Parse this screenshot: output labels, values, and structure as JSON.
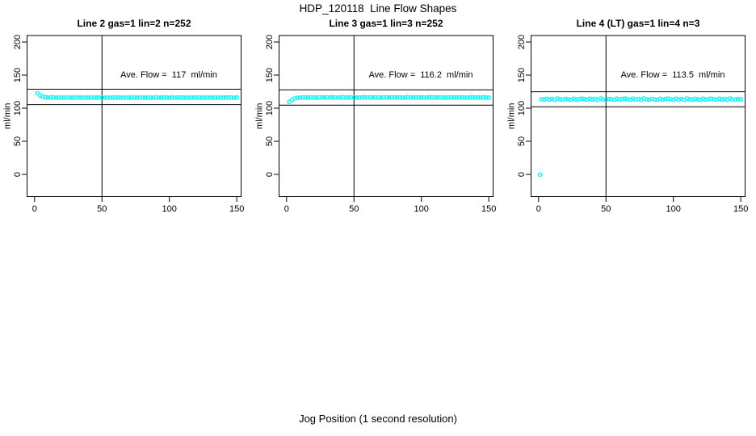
{
  "page": {
    "title": "HDP_120118  Line Flow Shapes",
    "xlabel": "Jog Position (1 second resolution)"
  },
  "colors": {
    "points": "#00FFFF",
    "axis": "#000000",
    "background": "#FFFFFF"
  },
  "chart_data": [
    {
      "type": "scatter",
      "title": "Line 2 gas=1 lin=2 n=252",
      "ylabel": "ml/min",
      "annotation": "Ave. Flow =  117  ml/min",
      "ave_flow": 117,
      "x_ticks": [
        0,
        50,
        100,
        150
      ],
      "y_ticks": [
        0,
        50,
        100,
        150,
        200
      ],
      "xlim": [
        -6,
        156
      ],
      "ylim": [
        -35,
        210
      ],
      "vline_x": 50,
      "hlines": [
        128.7,
        105.3
      ],
      "legend": "none",
      "grid": false,
      "points": [
        [
          2,
          122.4
        ],
        [
          4,
          119.2
        ],
        [
          6,
          117.4
        ],
        [
          8,
          116.5
        ],
        [
          10,
          116.1
        ],
        [
          12,
          116.4
        ],
        [
          14,
          116.2
        ],
        [
          16,
          115.9
        ],
        [
          18,
          116.0
        ],
        [
          20,
          115.8
        ],
        [
          22,
          116.1
        ],
        [
          24,
          115.9
        ],
        [
          26,
          116.2
        ],
        [
          28,
          115.8
        ],
        [
          30,
          116.0
        ],
        [
          32,
          116.1
        ],
        [
          34,
          116.0
        ],
        [
          36,
          115.8
        ],
        [
          38,
          116.1
        ],
        [
          40,
          115.9
        ],
        [
          42,
          116.2
        ],
        [
          44,
          115.8
        ],
        [
          46,
          116.0
        ],
        [
          48,
          116.1
        ],
        [
          50,
          116.0
        ],
        [
          52,
          115.8
        ],
        [
          54,
          116.1
        ],
        [
          56,
          115.9
        ],
        [
          58,
          116.2
        ],
        [
          60,
          115.8
        ],
        [
          62,
          116.0
        ],
        [
          64,
          116.1
        ],
        [
          66,
          116.0
        ],
        [
          68,
          115.8
        ],
        [
          70,
          116.1
        ],
        [
          72,
          115.9
        ],
        [
          74,
          116.2
        ],
        [
          76,
          115.8
        ],
        [
          78,
          116.0
        ],
        [
          80,
          116.1
        ],
        [
          82,
          116.0
        ],
        [
          84,
          115.8
        ],
        [
          86,
          116.1
        ],
        [
          88,
          115.9
        ],
        [
          90,
          116.2
        ],
        [
          92,
          115.8
        ],
        [
          94,
          116.0
        ],
        [
          96,
          116.1
        ],
        [
          98,
          116.0
        ],
        [
          100,
          115.8
        ],
        [
          102,
          116.1
        ],
        [
          104,
          115.9
        ],
        [
          106,
          116.2
        ],
        [
          108,
          115.8
        ],
        [
          110,
          116.0
        ],
        [
          112,
          116.1
        ],
        [
          114,
          116.0
        ],
        [
          116,
          115.8
        ],
        [
          118,
          116.1
        ],
        [
          120,
          115.9
        ],
        [
          122,
          116.2
        ],
        [
          124,
          115.8
        ],
        [
          126,
          116.0
        ],
        [
          128,
          116.1
        ],
        [
          130,
          116.0
        ],
        [
          132,
          115.8
        ],
        [
          134,
          116.1
        ],
        [
          136,
          115.9
        ],
        [
          138,
          116.2
        ],
        [
          140,
          115.8
        ],
        [
          142,
          116.0
        ],
        [
          144,
          116.1
        ],
        [
          146,
          116.0
        ],
        [
          148,
          115.8
        ],
        [
          150,
          116.1
        ]
      ]
    },
    {
      "type": "scatter",
      "title": "Line 3 gas=1 lin=3 n=252",
      "ylabel": "ml/min",
      "annotation": "Ave. Flow =  116.2  ml/min",
      "ave_flow": 116.2,
      "x_ticks": [
        0,
        50,
        100,
        150
      ],
      "y_ticks": [
        0,
        50,
        100,
        150,
        200
      ],
      "xlim": [
        -6,
        156
      ],
      "ylim": [
        -35,
        210
      ],
      "vline_x": 50,
      "hlines": [
        127.8,
        104.6
      ],
      "legend": "none",
      "grid": false,
      "points": [
        [
          2,
          109.4
        ],
        [
          4,
          112.8
        ],
        [
          6,
          114.7
        ],
        [
          8,
          115.6
        ],
        [
          10,
          116.0
        ],
        [
          12,
          116.1
        ],
        [
          14,
          116.2
        ],
        [
          16,
          116.0
        ],
        [
          18,
          116.3
        ],
        [
          20,
          116.1
        ],
        [
          22,
          115.9
        ],
        [
          24,
          116.2
        ],
        [
          26,
          116.4
        ],
        [
          28,
          116.0
        ],
        [
          30,
          116.2
        ],
        [
          32,
          116.0
        ],
        [
          34,
          116.3
        ],
        [
          36,
          116.1
        ],
        [
          38,
          115.9
        ],
        [
          40,
          116.2
        ],
        [
          42,
          116.4
        ],
        [
          44,
          116.0
        ],
        [
          46,
          116.2
        ],
        [
          48,
          116.0
        ],
        [
          50,
          116.3
        ],
        [
          52,
          116.1
        ],
        [
          54,
          115.9
        ],
        [
          56,
          116.2
        ],
        [
          58,
          116.4
        ],
        [
          60,
          116.0
        ],
        [
          62,
          116.2
        ],
        [
          64,
          116.0
        ],
        [
          66,
          116.3
        ],
        [
          68,
          116.1
        ],
        [
          70,
          115.9
        ],
        [
          72,
          116.2
        ],
        [
          74,
          116.4
        ],
        [
          76,
          116.0
        ],
        [
          78,
          116.2
        ],
        [
          80,
          116.0
        ],
        [
          82,
          116.3
        ],
        [
          84,
          116.1
        ],
        [
          86,
          115.9
        ],
        [
          88,
          116.2
        ],
        [
          90,
          116.4
        ],
        [
          92,
          116.0
        ],
        [
          94,
          116.2
        ],
        [
          96,
          116.0
        ],
        [
          98,
          116.3
        ],
        [
          100,
          116.1
        ],
        [
          102,
          115.9
        ],
        [
          104,
          116.2
        ],
        [
          106,
          116.4
        ],
        [
          108,
          116.0
        ],
        [
          110,
          116.2
        ],
        [
          112,
          116.0
        ],
        [
          114,
          116.3
        ],
        [
          116,
          116.1
        ],
        [
          118,
          115.9
        ],
        [
          120,
          116.2
        ],
        [
          122,
          116.4
        ],
        [
          124,
          116.0
        ],
        [
          126,
          116.2
        ],
        [
          128,
          116.0
        ],
        [
          130,
          116.3
        ],
        [
          132,
          116.1
        ],
        [
          134,
          115.9
        ],
        [
          136,
          116.2
        ],
        [
          138,
          116.4
        ],
        [
          140,
          116.0
        ],
        [
          142,
          116.2
        ],
        [
          144,
          116.0
        ],
        [
          146,
          116.3
        ],
        [
          148,
          116.1
        ],
        [
          150,
          115.9
        ]
      ]
    },
    {
      "type": "scatter",
      "title": "Line 4 (LT) gas=1 lin=4 n=3",
      "ylabel": "ml/min",
      "annotation": "Ave. Flow =  113.5  ml/min",
      "ave_flow": 113.5,
      "x_ticks": [
        0,
        50,
        100,
        150
      ],
      "y_ticks": [
        0,
        50,
        100,
        150,
        200
      ],
      "xlim": [
        -6,
        156
      ],
      "ylim": [
        -35,
        210
      ],
      "vline_x": 50,
      "hlines": [
        124.9,
        102.2
      ],
      "legend": "none",
      "grid": false,
      "points": [
        [
          1,
          -0.5
        ],
        [
          2,
          113.8
        ],
        [
          4,
          112.9
        ],
        [
          6,
          114.4
        ],
        [
          8,
          113.1
        ],
        [
          10,
          114.0
        ],
        [
          12,
          112.6
        ],
        [
          14,
          114.7
        ],
        [
          16,
          113.3
        ],
        [
          18,
          112.9
        ],
        [
          20,
          114.1
        ],
        [
          22,
          113.5
        ],
        [
          24,
          112.7
        ],
        [
          26,
          114.3
        ],
        [
          28,
          113.0
        ],
        [
          30,
          113.9
        ],
        [
          32,
          114.5
        ],
        [
          34,
          113.8
        ],
        [
          36,
          112.9
        ],
        [
          38,
          114.4
        ],
        [
          40,
          113.1
        ],
        [
          42,
          114.0
        ],
        [
          44,
          112.6
        ],
        [
          46,
          114.7
        ],
        [
          48,
          113.3
        ],
        [
          50,
          112.9
        ],
        [
          52,
          114.1
        ],
        [
          54,
          113.5
        ],
        [
          56,
          112.7
        ],
        [
          58,
          114.3
        ],
        [
          60,
          113.0
        ],
        [
          62,
          113.9
        ],
        [
          64,
          114.5
        ],
        [
          66,
          113.8
        ],
        [
          68,
          112.9
        ],
        [
          70,
          114.4
        ],
        [
          72,
          113.1
        ],
        [
          74,
          114.0
        ],
        [
          76,
          112.6
        ],
        [
          78,
          114.7
        ],
        [
          80,
          113.3
        ],
        [
          82,
          112.9
        ],
        [
          84,
          114.1
        ],
        [
          86,
          113.5
        ],
        [
          88,
          112.7
        ],
        [
          90,
          114.3
        ],
        [
          92,
          113.0
        ],
        [
          94,
          113.9
        ],
        [
          96,
          114.5
        ],
        [
          98,
          113.8
        ],
        [
          100,
          112.9
        ],
        [
          102,
          114.4
        ],
        [
          104,
          113.1
        ],
        [
          106,
          114.0
        ],
        [
          108,
          112.6
        ],
        [
          110,
          114.7
        ],
        [
          112,
          113.3
        ],
        [
          114,
          112.9
        ],
        [
          116,
          114.1
        ],
        [
          118,
          113.5
        ],
        [
          120,
          112.7
        ],
        [
          122,
          114.3
        ],
        [
          124,
          113.0
        ],
        [
          126,
          113.9
        ],
        [
          128,
          114.5
        ],
        [
          130,
          113.8
        ],
        [
          132,
          112.9
        ],
        [
          134,
          114.4
        ],
        [
          136,
          113.1
        ],
        [
          138,
          114.0
        ],
        [
          140,
          112.6
        ],
        [
          142,
          114.7
        ],
        [
          144,
          113.3
        ],
        [
          146,
          112.9
        ],
        [
          148,
          114.1
        ],
        [
          150,
          113.5
        ]
      ]
    }
  ]
}
